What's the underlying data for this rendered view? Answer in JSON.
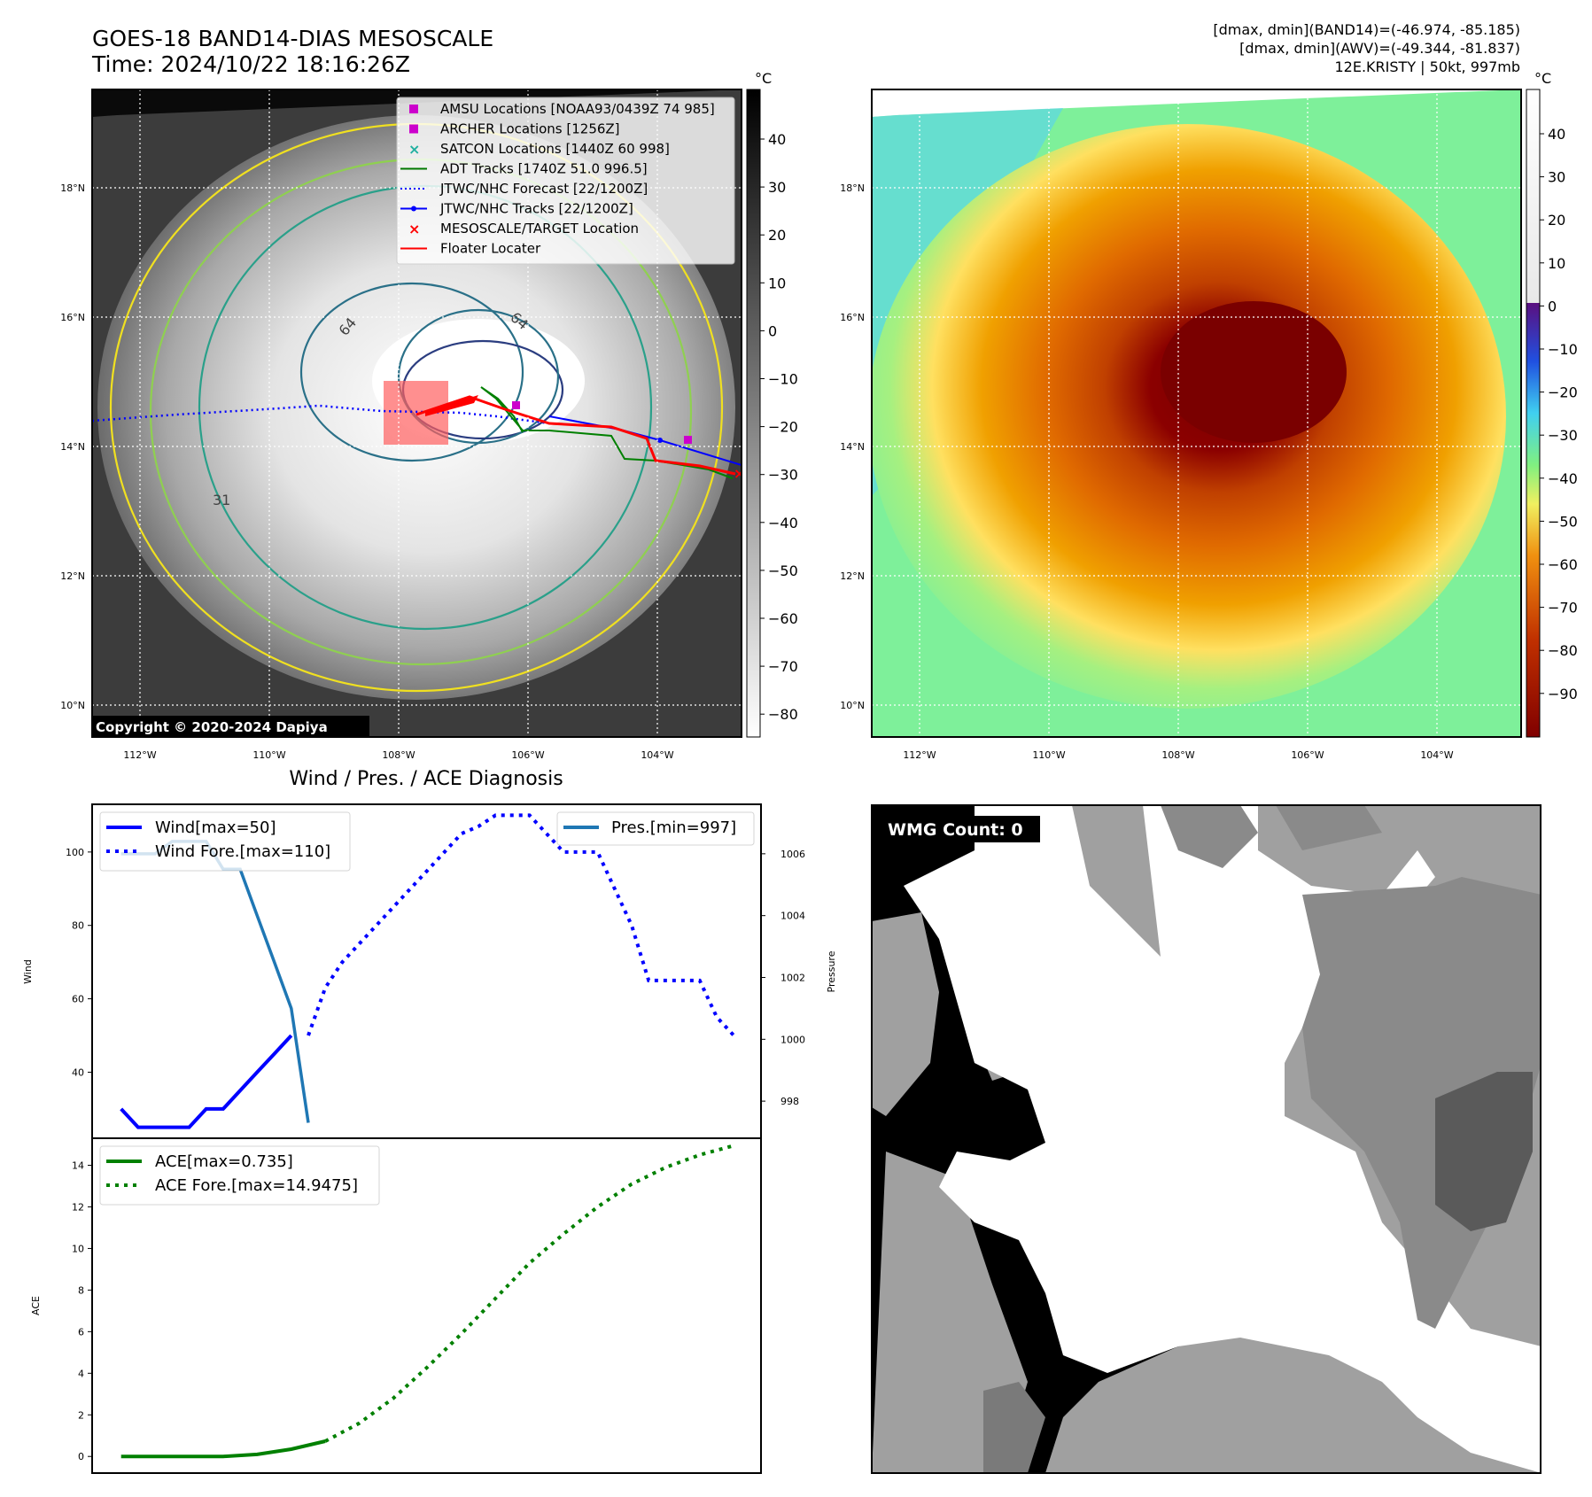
{
  "header": {
    "title": "GOES-18 BAND14-DIAS MESOSCALE",
    "time": "Time: 2024/10/22 18:16:26Z",
    "info_line1": "[dmax, dmin](BAND14)=(-46.974, -85.185)",
    "info_line2": "[dmax, dmin](AWV)=(-49.344, -81.837)",
    "info_line3": "12E.KRISTY | 50kt, 997mb"
  },
  "map": {
    "lat_labels": [
      "18°N",
      "16°N",
      "14°N",
      "12°N",
      "10°N"
    ],
    "lon_labels": [
      "112°W",
      "110°W",
      "108°W",
      "106°W",
      "104°W"
    ],
    "copyright": "Copyright © 2020-2024 Dapiya",
    "contour_labels": [
      "64",
      "64",
      "31"
    ]
  },
  "legend": {
    "items": [
      {
        "label": "AMSU Locations [NOAA93/0439Z 74 985]",
        "color": "#cc00cc",
        "marker": "square"
      },
      {
        "label": "ARCHER Locations [1256Z]",
        "color": "#cc00cc",
        "marker": "square"
      },
      {
        "label": "SATCON Locations [1440Z 60 998]",
        "color": "#20b0a0",
        "marker": "x"
      },
      {
        "label": "ADT Tracks [1740Z 51.0 996.5]",
        "color": "#007700",
        "marker": "line"
      },
      {
        "label": "JTWC/NHC Forecast [22/1200Z]",
        "color": "#0000ff",
        "marker": "dotted"
      },
      {
        "label": "JTWC/NHC Tracks [22/1200Z]",
        "color": "#0000ff",
        "marker": "line-dot"
      },
      {
        "label": "MESOSCALE/TARGET Location",
        "color": "#ff0000",
        "marker": "x"
      },
      {
        "label": "Floater Locater",
        "color": "#ff0000",
        "marker": "line"
      }
    ]
  },
  "colorbars": {
    "unit": "°C",
    "gray_ticks": [
      "40",
      "30",
      "20",
      "10",
      "0",
      "−10",
      "−20",
      "−30",
      "−40",
      "−50",
      "−60",
      "−70",
      "−80"
    ],
    "color_ticks": [
      "40",
      "30",
      "20",
      "10",
      "0",
      "−10",
      "−20",
      "−30",
      "−40",
      "−50",
      "−60",
      "−70",
      "−80",
      "−90"
    ]
  },
  "wmg": {
    "label": "WMG Count: 0"
  },
  "chart_data": [
    {
      "type": "line",
      "title": "Wind / Pres. / ACE Diagnosis",
      "ylabel": "Wind",
      "y2label": "Pressure",
      "ylim": [
        22,
        113
      ],
      "y2lim": [
        996.8,
        1007.6
      ],
      "yticks": [
        40,
        60,
        80,
        100
      ],
      "y2ticks": [
        998,
        1000,
        1002,
        1004,
        1006
      ],
      "x": [
        0,
        1,
        2,
        3,
        4,
        5,
        6,
        7,
        8,
        9,
        10,
        11,
        12,
        13,
        14,
        15,
        16,
        17,
        18,
        19,
        20,
        21,
        22,
        23,
        24,
        25,
        26,
        27,
        28,
        29,
        30,
        31,
        32,
        33,
        34,
        35,
        36
      ],
      "series": [
        {
          "name": "Wind[max=50]",
          "axis": "left",
          "style": "solid",
          "color": "#0000ff",
          "x": [
            0,
            1,
            2,
            3,
            4,
            5,
            6,
            7,
            8,
            9,
            10,
            11,
            12
          ],
          "values": [
            30,
            25,
            25,
            25,
            25,
            30,
            30,
            35,
            40,
            45,
            50,
            null,
            null
          ]
        },
        {
          "name": "Wind Fore.[max=110]",
          "axis": "left",
          "style": "dotted",
          "color": "#0000ff",
          "x": [
            11,
            12,
            13,
            14,
            15,
            16,
            17,
            18,
            19,
            20,
            21,
            22,
            23,
            24,
            25,
            26,
            27,
            28,
            29,
            30,
            31,
            32,
            33,
            34,
            35,
            36
          ],
          "values": [
            50,
            63,
            70,
            75,
            80,
            85,
            90,
            95,
            100,
            105,
            107,
            110,
            110,
            110,
            105,
            100,
            100,
            100,
            90,
            80,
            65,
            65,
            65,
            65,
            55,
            50
          ]
        },
        {
          "name": "Pres.[min=997]",
          "axis": "right",
          "style": "solid",
          "color": "#1f77b4",
          "x": [
            0,
            1,
            2,
            3,
            4,
            5,
            6,
            7,
            8,
            9,
            10,
            11
          ],
          "values": [
            1006.0,
            1006.0,
            1006.0,
            1006.4,
            1006.4,
            1006.4,
            1005.5,
            1005.5,
            1004.0,
            1002.5,
            1001.0,
            997.3
          ]
        }
      ]
    },
    {
      "type": "line",
      "ylabel": "ACE",
      "ylim": [
        -0.8,
        15.3
      ],
      "yticks": [
        0,
        2,
        4,
        6,
        8,
        10,
        12,
        14
      ],
      "series": [
        {
          "name": "ACE[max=0.735]",
          "style": "solid",
          "color": "#008000",
          "x": [
            0,
            2,
            4,
            6,
            8,
            10,
            12
          ],
          "values": [
            0,
            0,
            0,
            0,
            0.1,
            0.35,
            0.735
          ]
        },
        {
          "name": "ACE Fore.[max=14.9475]",
          "style": "dotted",
          "color": "#008000",
          "x": [
            12,
            14,
            16,
            18,
            20,
            22,
            24,
            26,
            28,
            30,
            32,
            34,
            36
          ],
          "values": [
            0.735,
            1.6,
            2.8,
            4.3,
            5.9,
            7.6,
            9.3,
            10.7,
            12.0,
            13.1,
            13.9,
            14.5,
            14.9475
          ]
        }
      ]
    }
  ]
}
